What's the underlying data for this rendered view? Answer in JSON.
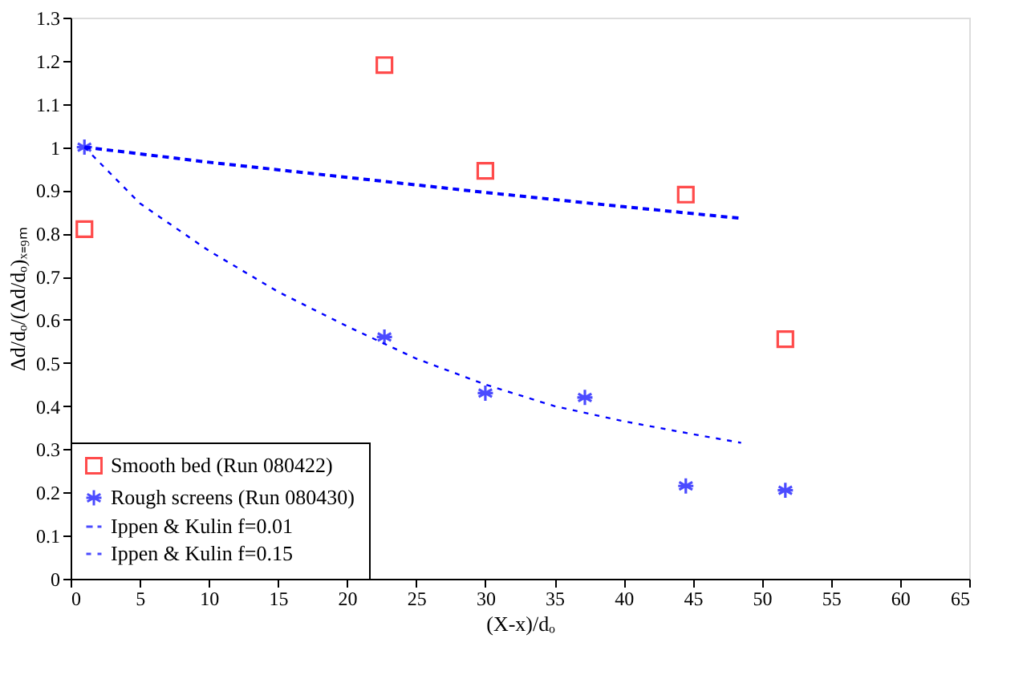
{
  "chart_data": {
    "type": "scatter",
    "xlabel": "(X-x)/dₒ",
    "ylabel": "Δd/dₒ/(Δd/dₒ)ₓ₌₉ₘ",
    "xlim": [
      0,
      65
    ],
    "xticks": [
      0,
      5,
      10,
      15,
      20,
      25,
      30,
      35,
      40,
      45,
      50,
      55,
      60,
      65
    ],
    "ylim": [
      0,
      1.3
    ],
    "yticks": [
      0,
      0.1,
      0.2,
      0.3,
      0.4,
      0.5,
      0.6,
      0.7,
      0.8,
      0.9,
      1,
      1.1,
      1.2,
      1.3
    ],
    "grid": false,
    "legend": "bottom left",
    "series": [
      {
        "name": "Smooth bed (Run 080422)",
        "marker": "square",
        "color": "#ff0000",
        "x": [
          1,
          22.7,
          30,
          44.5,
          51.7
        ],
        "values": [
          0.81,
          1.19,
          0.945,
          0.89,
          0.555
        ]
      },
      {
        "name": "Rough screens (Run 080430)",
        "marker": "cross",
        "color": "#0000ff",
        "x": [
          1,
          22.7,
          30,
          37.2,
          44.5,
          51.7
        ],
        "values": [
          1.0,
          0.56,
          0.43,
          0.42,
          0.215,
          0.205
        ]
      },
      {
        "name": "Ippen & Kulin f=0.01",
        "type": "line",
        "line_style": "dashed",
        "marker": "none",
        "color": "#0000ff",
        "x": [
          1,
          10,
          20,
          30,
          40,
          48.5
        ],
        "values": [
          1.0,
          0.965,
          0.93,
          0.895,
          0.862,
          0.835
        ]
      },
      {
        "name": "Ippen & Kulin f=0.15",
        "type": "line",
        "line_style": "dashed",
        "marker": "none",
        "color": "#0000ff",
        "x": [
          1,
          5,
          10,
          15,
          20,
          25,
          30,
          35,
          40,
          45,
          48.5
        ],
        "values": [
          1.0,
          0.87,
          0.76,
          0.665,
          0.585,
          0.51,
          0.45,
          0.4,
          0.365,
          0.335,
          0.315
        ]
      }
    ]
  }
}
